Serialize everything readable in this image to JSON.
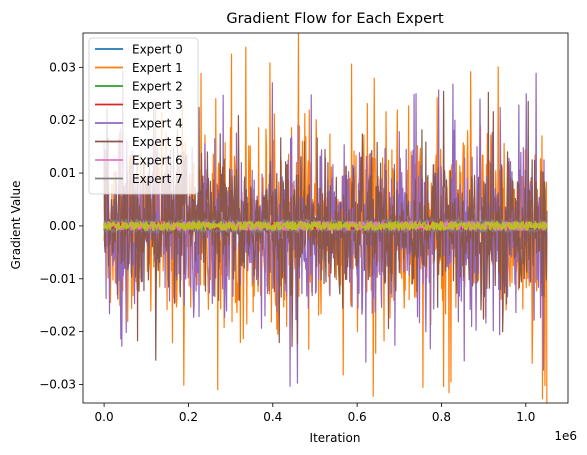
{
  "chart_data": {
    "type": "line",
    "title": "Gradient Flow for Each Expert",
    "xlabel": "Iteration",
    "ylabel": "Gradient Value",
    "x_offset_label": "1e6",
    "xlim": [
      -0.05,
      1.1
    ],
    "ylim": [
      -0.0335,
      0.0365
    ],
    "x_range": [
      0,
      1.05
    ],
    "x_ticks": [
      0.0,
      0.2,
      0.4,
      0.6,
      0.8,
      1.0
    ],
    "x_tick_labels": [
      "0.0",
      "0.2",
      "0.4",
      "0.6",
      "0.8",
      "1.0"
    ],
    "y_ticks": [
      -0.03,
      -0.02,
      -0.01,
      0.0,
      0.01,
      0.02,
      0.03
    ],
    "y_tick_labels": [
      "−0.03",
      "−0.02",
      "−0.01",
      "0.00",
      "0.01",
      "0.02",
      "0.03"
    ],
    "grid": false,
    "legend_position": "top-left",
    "series": [
      {
        "name": "Expert 0",
        "color": "#1f77b4",
        "amplitude": 0.0005
      },
      {
        "name": "Expert 1",
        "color": "#ff7f0e",
        "amplitude": 0.026,
        "peak_max": 0.0338,
        "peak_min": -0.0302
      },
      {
        "name": "Expert 2",
        "color": "#2ca02c",
        "amplitude": 0.0006
      },
      {
        "name": "Expert 3",
        "color": "#d62728",
        "amplitude": 0.0007
      },
      {
        "name": "Expert 4",
        "color": "#9467bd",
        "amplitude": 0.022
      },
      {
        "name": "Expert 5",
        "color": "#8c564b",
        "amplitude": 0.019
      },
      {
        "name": "Expert 6",
        "color": "#e377c2",
        "amplitude": 0.0008
      },
      {
        "name": "Expert 7",
        "color": "#7f7f7f",
        "amplitude": 0.0012
      },
      {
        "name": "",
        "color": "#bcbd22",
        "amplitude": 0.0008
      }
    ]
  }
}
